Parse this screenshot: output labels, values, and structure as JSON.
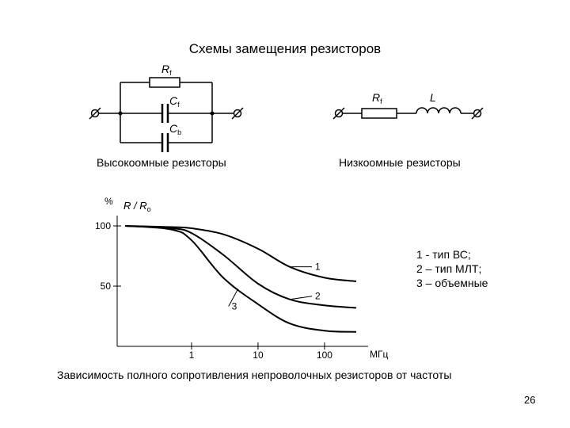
{
  "title": "Схемы замещения резисторов",
  "high_resistance": {
    "caption": "Высокоомные резисторы",
    "resistor_label": "R",
    "resistor_sub": "f",
    "cap1_label": "C",
    "cap1_sub": "f",
    "cap2_label": "C",
    "cap2_sub": "b"
  },
  "low_resistance": {
    "caption": "Низкоомные резисторы",
    "resistor_label": "R",
    "resistor_sub": "f",
    "inductor_label": "L"
  },
  "chart_data": {
    "type": "line",
    "ylabel_unit": "%",
    "ylabel_main": "R / R",
    "ylabel_sub": "o",
    "y_ticks": [
      "100",
      "50"
    ],
    "x_ticks": [
      "1",
      "10",
      "100"
    ],
    "x_unit": "МГц",
    "x_scale": "log",
    "series": [
      {
        "name": "1",
        "x": [
          0.1,
          0.5,
          1,
          3,
          10,
          30,
          100,
          300
        ],
        "y": [
          100,
          99,
          98,
          93,
          81,
          66,
          57,
          54
        ]
      },
      {
        "name": "2",
        "x": [
          0.1,
          0.5,
          1,
          3,
          10,
          30,
          100,
          300
        ],
        "y": [
          100,
          98,
          94,
          76,
          52,
          39,
          34,
          32
        ]
      },
      {
        "name": "3",
        "x": [
          0.1,
          0.5,
          1,
          3,
          10,
          30,
          100,
          300
        ],
        "y": [
          100,
          97,
          88,
          57,
          35,
          19,
          13,
          12
        ]
      }
    ]
  },
  "legend": [
    "1 - тип ВС;",
    "2 – тип МЛТ;",
    "3 – объемные"
  ],
  "caption": "Зависимость полного сопротивления непроволочных резисторов от частоты",
  "page_number": "26"
}
